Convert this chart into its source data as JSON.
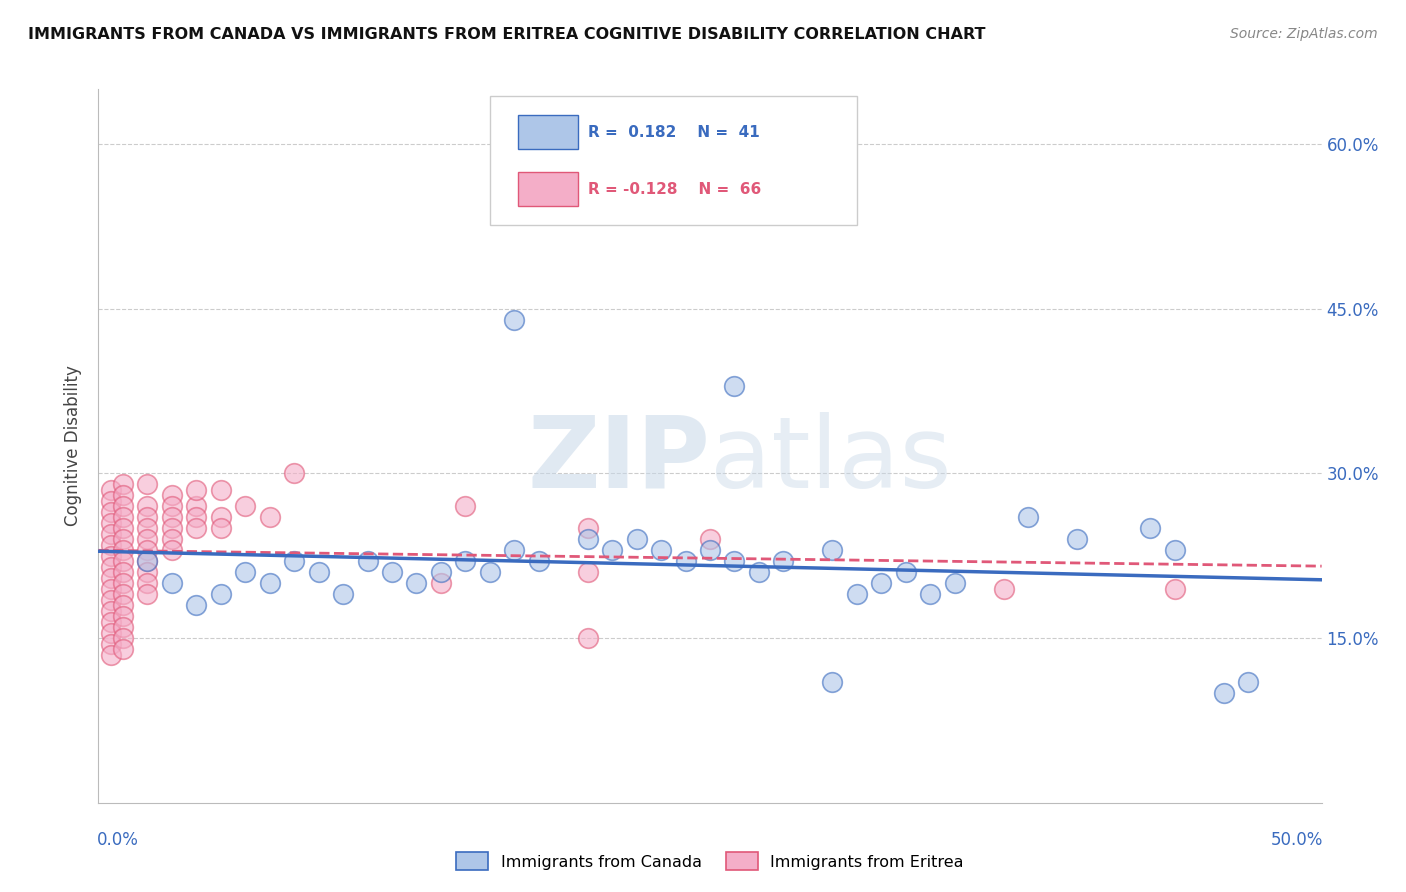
{
  "title": "IMMIGRANTS FROM CANADA VS IMMIGRANTS FROM ERITREA COGNITIVE DISABILITY CORRELATION CHART",
  "source": "Source: ZipAtlas.com",
  "ylabel": "Cognitive Disability",
  "xlim": [
    0.0,
    0.5
  ],
  "ylim": [
    0.0,
    0.65
  ],
  "yticks": [
    0.15,
    0.3,
    0.45,
    0.6
  ],
  "ytick_labels": [
    "15.0%",
    "30.0%",
    "45.0%",
    "60.0%"
  ],
  "canada_color": "#aec6e8",
  "eritrea_color": "#f4aec8",
  "canada_line_color": "#3a6bbf",
  "eritrea_line_color": "#e05878",
  "legend_label_canada": "Immigrants from Canada",
  "legend_label_eritrea": "Immigrants from Eritrea",
  "canada_scatter": [
    [
      0.02,
      0.22
    ],
    [
      0.03,
      0.2
    ],
    [
      0.04,
      0.18
    ],
    [
      0.05,
      0.19
    ],
    [
      0.06,
      0.21
    ],
    [
      0.07,
      0.2
    ],
    [
      0.08,
      0.22
    ],
    [
      0.09,
      0.21
    ],
    [
      0.1,
      0.19
    ],
    [
      0.11,
      0.22
    ],
    [
      0.12,
      0.21
    ],
    [
      0.13,
      0.2
    ],
    [
      0.14,
      0.21
    ],
    [
      0.15,
      0.22
    ],
    [
      0.16,
      0.21
    ],
    [
      0.17,
      0.23
    ],
    [
      0.18,
      0.22
    ],
    [
      0.2,
      0.24
    ],
    [
      0.21,
      0.23
    ],
    [
      0.22,
      0.24
    ],
    [
      0.23,
      0.23
    ],
    [
      0.24,
      0.22
    ],
    [
      0.25,
      0.23
    ],
    [
      0.26,
      0.22
    ],
    [
      0.27,
      0.21
    ],
    [
      0.28,
      0.22
    ],
    [
      0.3,
      0.23
    ],
    [
      0.31,
      0.19
    ],
    [
      0.32,
      0.2
    ],
    [
      0.33,
      0.21
    ],
    [
      0.34,
      0.19
    ],
    [
      0.35,
      0.2
    ],
    [
      0.17,
      0.44
    ],
    [
      0.26,
      0.38
    ],
    [
      0.38,
      0.26
    ],
    [
      0.4,
      0.24
    ],
    [
      0.43,
      0.25
    ],
    [
      0.44,
      0.23
    ],
    [
      0.46,
      0.1
    ],
    [
      0.47,
      0.11
    ],
    [
      0.3,
      0.11
    ]
  ],
  "eritrea_scatter": [
    [
      0.005,
      0.285
    ],
    [
      0.005,
      0.275
    ],
    [
      0.005,
      0.265
    ],
    [
      0.005,
      0.255
    ],
    [
      0.005,
      0.245
    ],
    [
      0.005,
      0.235
    ],
    [
      0.005,
      0.225
    ],
    [
      0.005,
      0.215
    ],
    [
      0.005,
      0.205
    ],
    [
      0.005,
      0.195
    ],
    [
      0.005,
      0.185
    ],
    [
      0.005,
      0.175
    ],
    [
      0.005,
      0.165
    ],
    [
      0.005,
      0.155
    ],
    [
      0.005,
      0.145
    ],
    [
      0.005,
      0.135
    ],
    [
      0.01,
      0.29
    ],
    [
      0.01,
      0.28
    ],
    [
      0.01,
      0.27
    ],
    [
      0.01,
      0.26
    ],
    [
      0.01,
      0.25
    ],
    [
      0.01,
      0.24
    ],
    [
      0.01,
      0.23
    ],
    [
      0.01,
      0.22
    ],
    [
      0.01,
      0.21
    ],
    [
      0.01,
      0.2
    ],
    [
      0.01,
      0.19
    ],
    [
      0.01,
      0.18
    ],
    [
      0.01,
      0.17
    ],
    [
      0.01,
      0.16
    ],
    [
      0.01,
      0.15
    ],
    [
      0.01,
      0.14
    ],
    [
      0.02,
      0.29
    ],
    [
      0.02,
      0.27
    ],
    [
      0.02,
      0.26
    ],
    [
      0.02,
      0.25
    ],
    [
      0.02,
      0.24
    ],
    [
      0.02,
      0.23
    ],
    [
      0.02,
      0.22
    ],
    [
      0.02,
      0.21
    ],
    [
      0.02,
      0.2
    ],
    [
      0.02,
      0.19
    ],
    [
      0.03,
      0.28
    ],
    [
      0.03,
      0.27
    ],
    [
      0.03,
      0.26
    ],
    [
      0.03,
      0.25
    ],
    [
      0.03,
      0.24
    ],
    [
      0.03,
      0.23
    ],
    [
      0.04,
      0.27
    ],
    [
      0.04,
      0.26
    ],
    [
      0.04,
      0.25
    ],
    [
      0.05,
      0.26
    ],
    [
      0.05,
      0.25
    ],
    [
      0.06,
      0.27
    ],
    [
      0.07,
      0.26
    ],
    [
      0.04,
      0.285
    ],
    [
      0.05,
      0.285
    ],
    [
      0.08,
      0.3
    ],
    [
      0.15,
      0.27
    ],
    [
      0.2,
      0.25
    ],
    [
      0.25,
      0.24
    ],
    [
      0.2,
      0.21
    ],
    [
      0.14,
      0.2
    ],
    [
      0.37,
      0.195
    ],
    [
      0.44,
      0.195
    ],
    [
      0.2,
      0.15
    ]
  ]
}
